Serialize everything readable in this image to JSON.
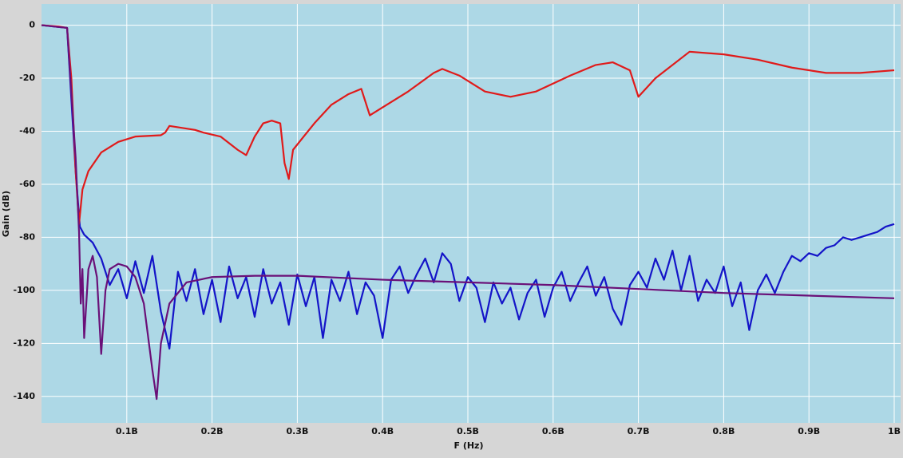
{
  "chart_data": {
    "type": "line",
    "x_label": "F (Hz)",
    "y_label": "Gain (dB)",
    "xlim": [
      0,
      1
    ],
    "ylim": [
      -150,
      8
    ],
    "xticks": [
      {
        "value": 0.1,
        "label": "0.1B"
      },
      {
        "value": 0.2,
        "label": "0.2B"
      },
      {
        "value": 0.3,
        "label": "0.3B"
      },
      {
        "value": 0.4,
        "label": "0.4B"
      },
      {
        "value": 0.5,
        "label": "0.5B"
      },
      {
        "value": 0.6,
        "label": "0.6B"
      },
      {
        "value": 0.7,
        "label": "0.7B"
      },
      {
        "value": 0.8,
        "label": "0.8B"
      },
      {
        "value": 0.9,
        "label": "0.9B"
      },
      {
        "value": 1,
        "label": "1B"
      }
    ],
    "yticks": [
      0,
      -20,
      -40,
      -60,
      -80,
      -100,
      -120,
      -140
    ],
    "grid": true,
    "series": [
      {
        "color": "#1414c8",
        "x": [
          0,
          0.03,
          0.04,
          0.045,
          0.05,
          0.06,
          0.07,
          0.08,
          0.09,
          0.1,
          0.11,
          0.12,
          0.13,
          0.14,
          0.15,
          0.16,
          0.17,
          0.18,
          0.19,
          0.2,
          0.21,
          0.22,
          0.23,
          0.24,
          0.25,
          0.26,
          0.27,
          0.28,
          0.29,
          0.3,
          0.31,
          0.32,
          0.33,
          0.34,
          0.35,
          0.36,
          0.37,
          0.38,
          0.39,
          0.4,
          0.41,
          0.42,
          0.43,
          0.44,
          0.45,
          0.46,
          0.47,
          0.48,
          0.49,
          0.5,
          0.51,
          0.52,
          0.53,
          0.54,
          0.55,
          0.56,
          0.57,
          0.58,
          0.59,
          0.6,
          0.61,
          0.62,
          0.63,
          0.64,
          0.65,
          0.66,
          0.67,
          0.68,
          0.69,
          0.7,
          0.71,
          0.72,
          0.73,
          0.74,
          0.75,
          0.76,
          0.77,
          0.78,
          0.79,
          0.8,
          0.81,
          0.82,
          0.83,
          0.84,
          0.85,
          0.86,
          0.87,
          0.88,
          0.89,
          0.9,
          0.91,
          0.92,
          0.93,
          0.94,
          0.95,
          0.96,
          0.97,
          0.98,
          0.99,
          1
        ],
        "values": [
          0,
          -1,
          -55,
          -76,
          -79,
          -82,
          -88,
          -98,
          -92,
          -103,
          -89,
          -101,
          -87,
          -108,
          -122,
          -93,
          -104,
          -92,
          -109,
          -96,
          -112,
          -91,
          -103,
          -95,
          -110,
          -92,
          -105,
          -97,
          -113,
          -94,
          -106,
          -95,
          -118,
          -96,
          -104,
          -93,
          -109,
          -97,
          -102,
          -118,
          -96,
          -91,
          -101,
          -94,
          -88,
          -97,
          -86,
          -90,
          -104,
          -95,
          -99,
          -112,
          -97,
          -105,
          -99,
          -111,
          -101,
          -96,
          -110,
          -99,
          -93,
          -104,
          -97,
          -91,
          -102,
          -95,
          -107,
          -113,
          -98,
          -93,
          -99,
          -88,
          -96,
          -85,
          -100,
          -87,
          -104,
          -96,
          -101,
          -91,
          -106,
          -97,
          -115,
          -100,
          -94,
          -101,
          -93,
          -87,
          -89,
          -86,
          -87,
          -84,
          -83,
          -80,
          -81,
          -80,
          -79,
          -78,
          -76,
          -75
        ]
      },
      {
        "color": "#e01a1a",
        "x": [
          0,
          0.02,
          0.03,
          0.035,
          0.04,
          0.044,
          0.048,
          0.055,
          0.07,
          0.09,
          0.11,
          0.14,
          0.145,
          0.15,
          0.18,
          0.19,
          0.21,
          0.23,
          0.24,
          0.25,
          0.26,
          0.27,
          0.28,
          0.285,
          0.29,
          0.295,
          0.32,
          0.34,
          0.36,
          0.375,
          0.385,
          0.4,
          0.43,
          0.46,
          0.47,
          0.49,
          0.52,
          0.55,
          0.58,
          0.62,
          0.65,
          0.67,
          0.69,
          0.7,
          0.72,
          0.76,
          0.8,
          0.84,
          0.88,
          0.92,
          0.96,
          1
        ],
        "values": [
          0,
          -0.5,
          -1,
          -20,
          -55,
          -75,
          -62,
          -55,
          -48,
          -44,
          -42,
          -41.5,
          -40.5,
          -38,
          -39.5,
          -40.5,
          -42,
          -47,
          -49,
          -42,
          -37,
          -36,
          -37,
          -52,
          -58,
          -47,
          -37,
          -30,
          -26,
          -24,
          -34,
          -31,
          -25,
          -18,
          -16.5,
          -19,
          -25,
          -27,
          -25,
          -19,
          -15,
          -14,
          -17,
          -27,
          -20,
          -10,
          -11,
          -13,
          -16,
          -18,
          -18,
          -17
        ]
      },
      {
        "color": "#6a1078",
        "x": [
          0,
          0.03,
          0.04,
          0.044,
          0.046,
          0.048,
          0.05,
          0.055,
          0.06,
          0.065,
          0.07,
          0.075,
          0.08,
          0.09,
          0.1,
          0.11,
          0.12,
          0.13,
          0.135,
          0.14,
          0.15,
          0.17,
          0.2,
          0.25,
          0.3,
          0.4,
          0.5,
          0.6,
          0.7,
          0.8,
          0.9,
          1
        ],
        "values": [
          0,
          -1,
          -50,
          -78,
          -105,
          -92,
          -118,
          -92,
          -87,
          -95,
          -124,
          -100,
          -92,
          -90,
          -91,
          -95,
          -105,
          -130,
          -141,
          -120,
          -105,
          -97,
          -95,
          -94.5,
          -94.5,
          -96,
          -97,
          -98,
          -99.5,
          -101,
          -102,
          -103
        ]
      }
    ]
  }
}
